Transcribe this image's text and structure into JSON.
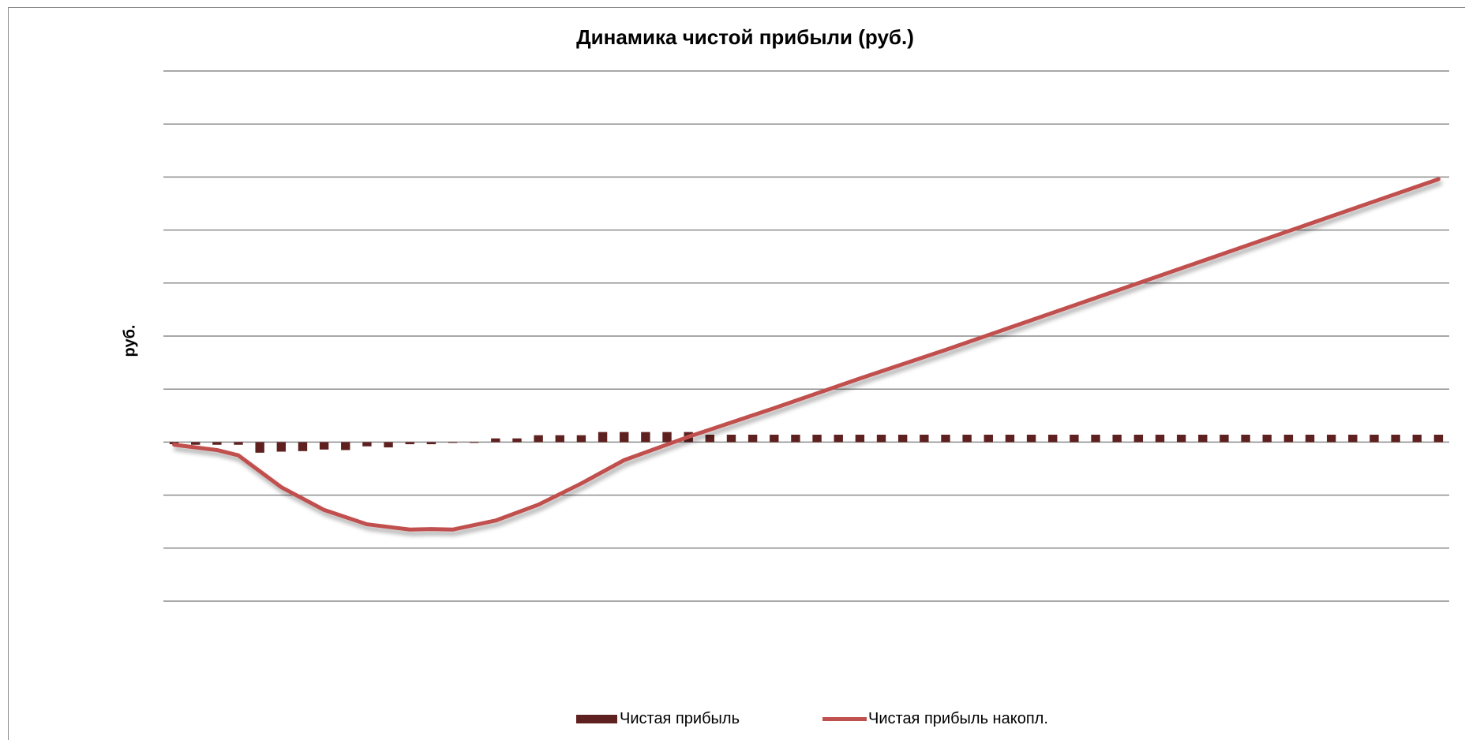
{
  "chart_data": {
    "type": "bar+line",
    "title": "Динамика чистой прибыли (руб.)",
    "ylabel": "руб.",
    "xlabel": "",
    "grid": true,
    "ylim": [
      -300,
      700
    ],
    "gridline_step": 100,
    "legend_position": "bottom",
    "series": [
      {
        "name": "Чистая прибыль",
        "kind": "bar",
        "color": "#5f2120",
        "values": [
          -4,
          -5,
          -5,
          -5,
          -20,
          -18,
          -17,
          -14,
          -15,
          -8,
          -10,
          -4,
          -4,
          -1,
          0,
          7,
          7,
          13,
          13,
          13,
          19,
          19,
          19,
          19,
          19,
          14,
          14,
          14,
          14,
          14,
          14,
          14,
          14,
          14,
          14,
          14,
          14,
          14,
          14,
          14,
          14,
          14,
          14,
          14,
          14,
          14,
          14,
          14,
          14,
          14,
          14,
          14,
          14,
          14,
          14,
          14,
          14,
          14,
          14,
          14
        ]
      },
      {
        "name": "Чистая прибыль накопл.",
        "kind": "line",
        "color": "#c0504d",
        "points": [
          [
            0,
            -5
          ],
          [
            1,
            -10
          ],
          [
            2,
            -15
          ],
          [
            3,
            -25
          ],
          [
            4,
            -55
          ],
          [
            5,
            -85
          ],
          [
            7,
            -128
          ],
          [
            9,
            -155
          ],
          [
            11,
            -165
          ],
          [
            12,
            -164
          ],
          [
            13,
            -165
          ],
          [
            15,
            -148
          ],
          [
            17,
            -118
          ],
          [
            19,
            -78
          ],
          [
            21,
            -34
          ],
          [
            24,
            10
          ],
          [
            28,
            64
          ],
          [
            32,
            120
          ],
          [
            36,
            174
          ],
          [
            40,
            230
          ],
          [
            44,
            286
          ],
          [
            48,
            342
          ],
          [
            52,
            398
          ],
          [
            56,
            454
          ],
          [
            59,
            496
          ]
        ]
      }
    ]
  }
}
